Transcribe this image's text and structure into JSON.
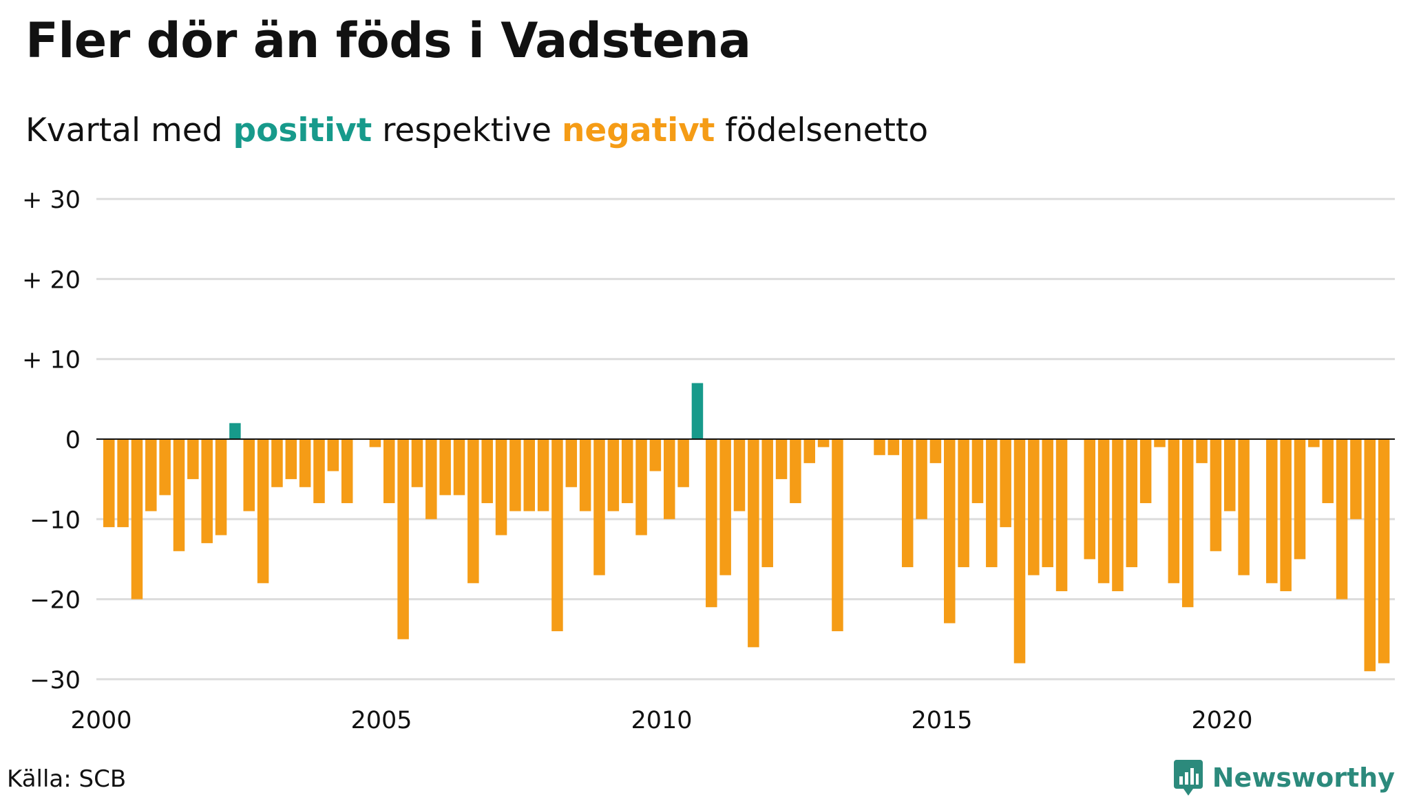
{
  "title": "Fler dör än föds i Vadstena",
  "subtitle": {
    "part1": "Kvartal med ",
    "positive": "positivt",
    "part2": " respektive ",
    "negative": "negativt",
    "part3": " födelsenetto"
  },
  "source": "Källa: SCB",
  "brand": "Newsworthy",
  "colors": {
    "positive": "#179a8b",
    "negative": "#f59c16",
    "grid": "#dcdcdc",
    "zero_line": "#111111",
    "brand": "#2c8a7c"
  },
  "chart_data": {
    "type": "bar",
    "x_start": "2000-Q1",
    "x_ticks": [
      "2000",
      "2005",
      "2010",
      "2015",
      "2020"
    ],
    "y_ticks": [
      "+ 30",
      "+ 20",
      "+ 10",
      "0",
      "−10",
      "−20",
      "−30"
    ],
    "ylim": [
      -30,
      30
    ],
    "grid": true,
    "values": [
      -11,
      -11,
      -20,
      -9,
      -7,
      -14,
      -5,
      -13,
      -12,
      2,
      -9,
      -18,
      -6,
      -5,
      -6,
      -8,
      -4,
      -8,
      0,
      -1,
      -8,
      -25,
      -6,
      -10,
      -7,
      -7,
      -18,
      -8,
      -12,
      -9,
      -9,
      -9,
      -24,
      -6,
      -9,
      -17,
      -9,
      -8,
      -12,
      -4,
      -10,
      -6,
      7,
      -21,
      -17,
      -9,
      -26,
      -16,
      -5,
      -8,
      -3,
      -1,
      -24,
      0,
      0,
      -2,
      -2,
      -16,
      -10,
      -3,
      -23,
      -16,
      -8,
      -16,
      -11,
      -28,
      -17,
      -16,
      -19,
      0,
      -15,
      -18,
      -19,
      -16,
      -8,
      -1,
      -18,
      -21,
      -3,
      -14,
      -9,
      -17,
      0,
      -18,
      -19,
      -15,
      -1,
      -8,
      -20,
      -10,
      -29,
      -28
    ]
  }
}
